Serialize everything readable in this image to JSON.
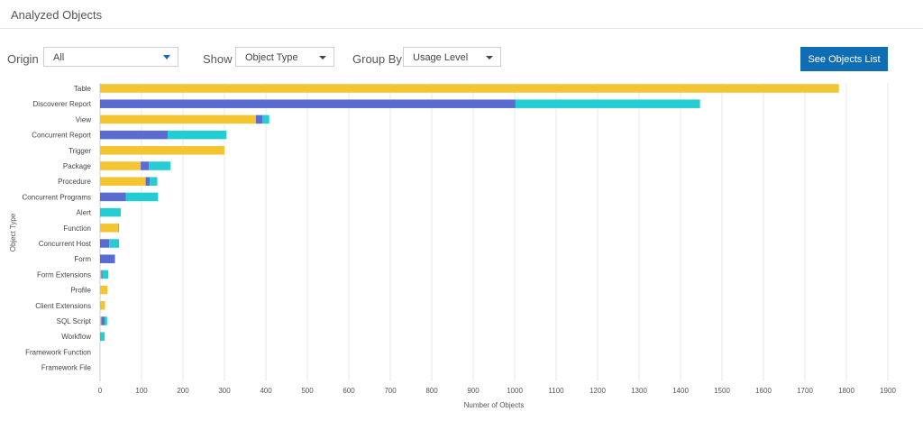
{
  "page": {
    "title": "Analyzed Objects"
  },
  "controls": {
    "origin": {
      "label": "Origin",
      "value": "All"
    },
    "show": {
      "label": "Show",
      "value": "Object Type"
    },
    "group_by": {
      "label": "Group By",
      "value": "Usage Level"
    },
    "see_objects_button": "See Objects List"
  },
  "colors": {
    "yellow": "#f5c431",
    "purple": "#5a6bd2",
    "cyan": "#24ccd4",
    "button": "#0f6db3"
  },
  "chart_data": {
    "type": "bar",
    "orientation": "horizontal",
    "stacked": true,
    "xlabel": "Number of Objects",
    "ylabel": "Object Type",
    "xlim": [
      0,
      1900
    ],
    "xticks": [
      0,
      100,
      200,
      300,
      400,
      500,
      600,
      700,
      800,
      900,
      1000,
      1100,
      1200,
      1300,
      1400,
      1500,
      1600,
      1700,
      1800,
      1900
    ],
    "grid": true,
    "categories": [
      "Table",
      "Discoverer Report",
      "View",
      "Concurrent Report",
      "Trigger",
      "Package",
      "Procedure",
      "Concurrent Programs",
      "Alert",
      "Function",
      "Concurrent Host",
      "Form",
      "Form Extensions",
      "Profile",
      "Client Extensions",
      "SQL Script",
      "Workflow",
      "Framework Function",
      "Framework File"
    ],
    "series": [
      {
        "color": "#f5c431",
        "values": [
          1782,
          0,
          376,
          0,
          300,
          98,
          110,
          0,
          0,
          44,
          0,
          0,
          3,
          18,
          12,
          3,
          0,
          0,
          0
        ]
      },
      {
        "color": "#5a6bd2",
        "values": [
          0,
          1002,
          16,
          163,
          0,
          20,
          10,
          62,
          0,
          0,
          22,
          36,
          3,
          0,
          0,
          8,
          0,
          0,
          0
        ]
      },
      {
        "color": "#24ccd4",
        "values": [
          0,
          445,
          16,
          142,
          0,
          52,
          18,
          78,
          50,
          2,
          24,
          0,
          14,
          0,
          0,
          6,
          11,
          0,
          0
        ]
      }
    ]
  }
}
